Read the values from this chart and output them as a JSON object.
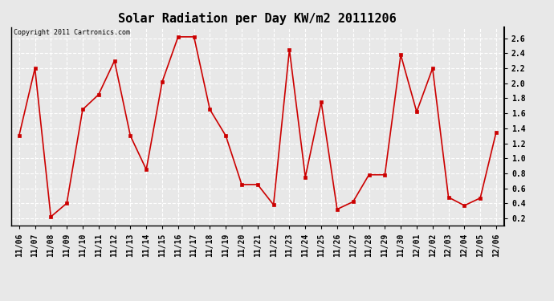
{
  "title": "Solar Radiation per Day KW/m2 20111206",
  "copyright_text": "Copyright 2011 Cartronics.com",
  "labels": [
    "11/06",
    "11/07",
    "11/08",
    "11/09",
    "11/10",
    "11/11",
    "11/12",
    "11/13",
    "11/14",
    "11/15",
    "11/16",
    "11/17",
    "11/18",
    "11/19",
    "11/20",
    "11/21",
    "11/22",
    "11/23",
    "11/24",
    "11/25",
    "11/26",
    "11/27",
    "11/28",
    "11/29",
    "11/30",
    "12/01",
    "12/02",
    "12/03",
    "12/04",
    "12/05",
    "12/06"
  ],
  "values": [
    1.3,
    2.2,
    0.22,
    0.4,
    1.65,
    1.85,
    2.3,
    1.3,
    0.85,
    2.02,
    2.62,
    2.62,
    1.65,
    1.3,
    0.65,
    0.65,
    0.38,
    2.45,
    0.75,
    1.75,
    0.32,
    0.42,
    0.78,
    0.78,
    2.38,
    1.62,
    2.2,
    0.48,
    0.37,
    0.47,
    1.35
  ],
  "line_color": "#cc0000",
  "marker_color": "#cc0000",
  "bg_color": "#e8e8e8",
  "plot_bg_color": "#e8e8e8",
  "grid_color": "#ffffff",
  "title_fontsize": 11,
  "tick_fontsize": 7,
  "copyright_fontsize": 6,
  "ylim": [
    0.1,
    2.75
  ],
  "yticks": [
    0.2,
    0.4,
    0.6,
    0.8,
    1.0,
    1.2,
    1.4,
    1.6,
    1.8,
    2.0,
    2.2,
    2.4,
    2.6
  ]
}
